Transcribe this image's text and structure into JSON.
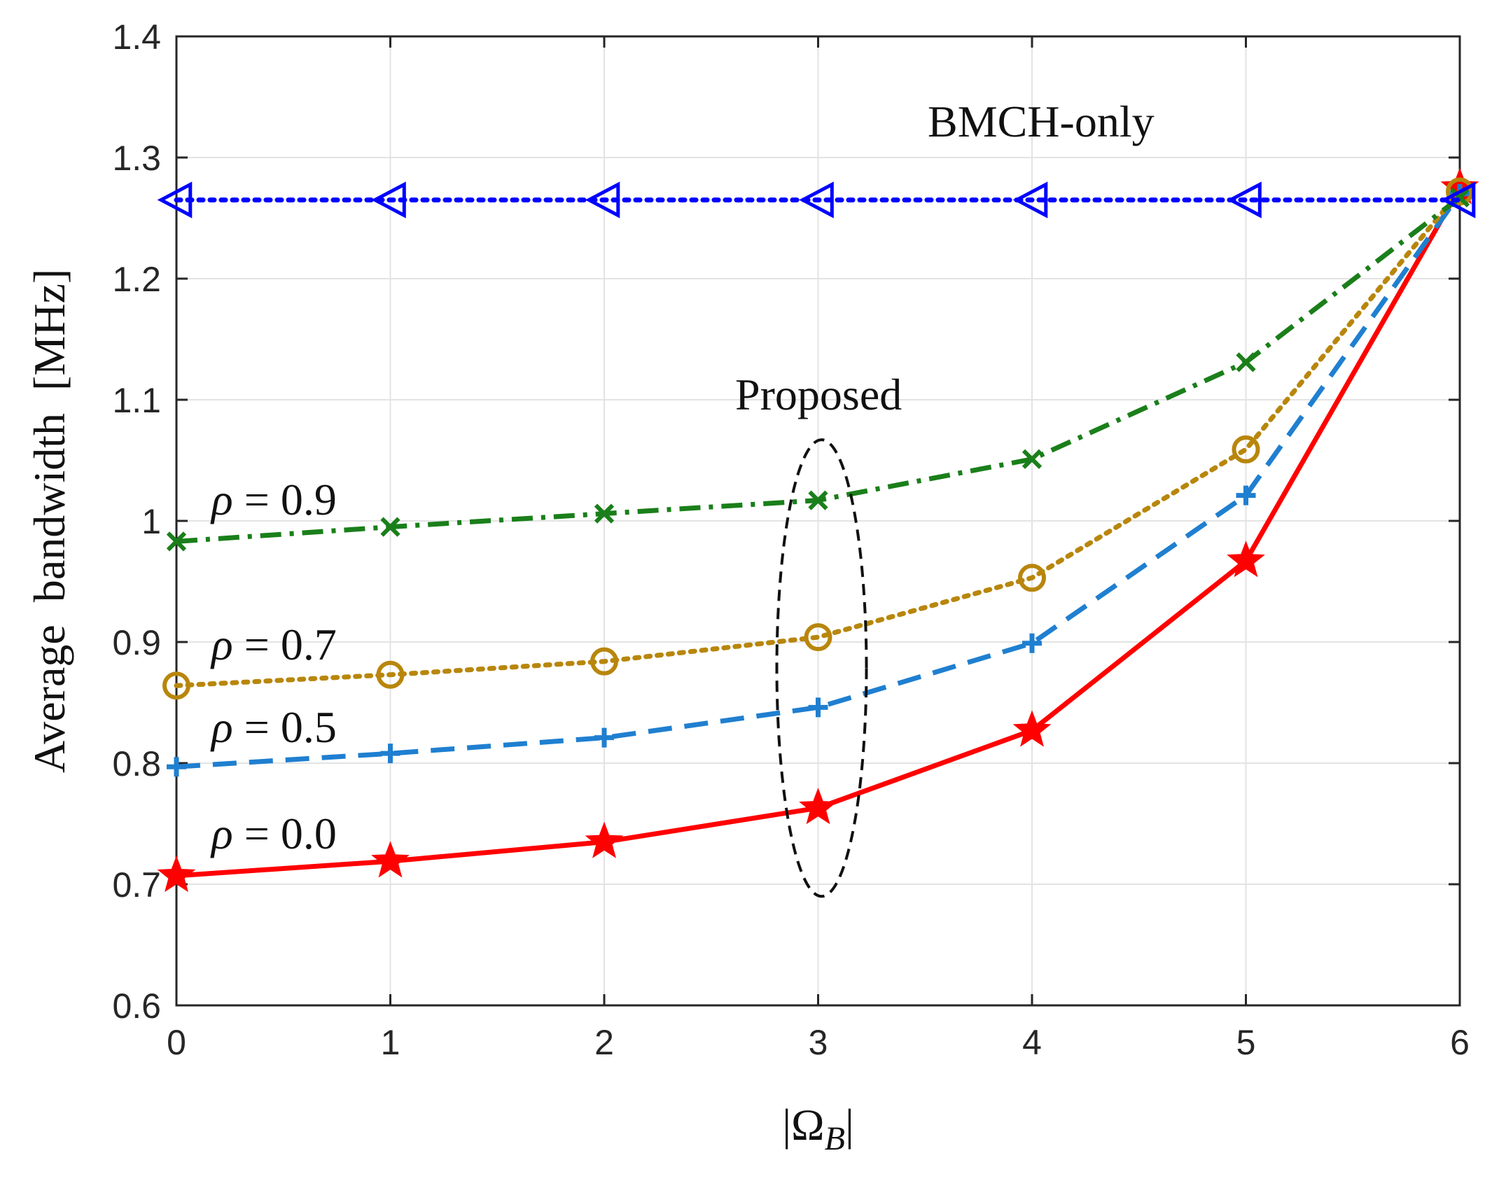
{
  "chart_data": {
    "type": "line",
    "title": "",
    "xlabel": "|Ω_B|",
    "xlabel_parts": {
      "pre": "|Ω",
      "sub": "B",
      "post": "|"
    },
    "ylabel": "Average  bandwidth  [MHz]",
    "x": [
      0,
      1,
      2,
      3,
      4,
      5,
      6
    ],
    "xlim": [
      0,
      6
    ],
    "ylim": [
      0.6,
      1.4
    ],
    "xticks": [
      "0",
      "1",
      "2",
      "3",
      "4",
      "5",
      "6"
    ],
    "yticks": [
      "0.6",
      "0.7",
      "0.8",
      "0.9",
      "1",
      "1.1",
      "1.2",
      "1.3",
      "1.4"
    ],
    "grid": true,
    "series": [
      {
        "name": "BMCH-only",
        "color": "#0000ff",
        "dash": "dotted",
        "marker": "triangle-left",
        "values": [
          1.265,
          1.265,
          1.265,
          1.265,
          1.265,
          1.265,
          1.265
        ]
      },
      {
        "name": "ρ = 0.9",
        "color": "#1a7f1a",
        "dash": "dashdot",
        "marker": "x",
        "values": [
          0.983,
          0.995,
          1.006,
          1.017,
          1.051,
          1.131,
          1.267
        ]
      },
      {
        "name": "ρ = 0.7",
        "color": "#b8860b",
        "dash": "dotted",
        "marker": "circle",
        "values": [
          0.864,
          0.873,
          0.884,
          0.904,
          0.953,
          1.059,
          1.272
        ]
      },
      {
        "name": "ρ = 0.5",
        "color": "#1f7fd0",
        "dash": "dashed",
        "marker": "plus",
        "values": [
          0.797,
          0.808,
          0.821,
          0.846,
          0.899,
          1.021,
          1.27
        ]
      },
      {
        "name": "ρ = 0.0",
        "color": "#ff0000",
        "dash": "solid",
        "marker": "star",
        "values": [
          0.707,
          0.719,
          0.735,
          0.763,
          0.827,
          0.967,
          1.275
        ]
      }
    ],
    "annotations": {
      "bmch_only": "BMCH-only",
      "proposed": "Proposed",
      "rho_09": {
        "symbol": "ρ",
        "text": " = 0.9"
      },
      "rho_07": {
        "symbol": "ρ",
        "text": " = 0.7"
      },
      "rho_05": {
        "symbol": "ρ",
        "text": " = 0.5"
      },
      "rho_00": {
        "symbol": "ρ",
        "text": " = 0.0"
      }
    },
    "ellipse_at_x": 3,
    "ellipse_y_range": [
      0.69,
      1.067
    ]
  }
}
